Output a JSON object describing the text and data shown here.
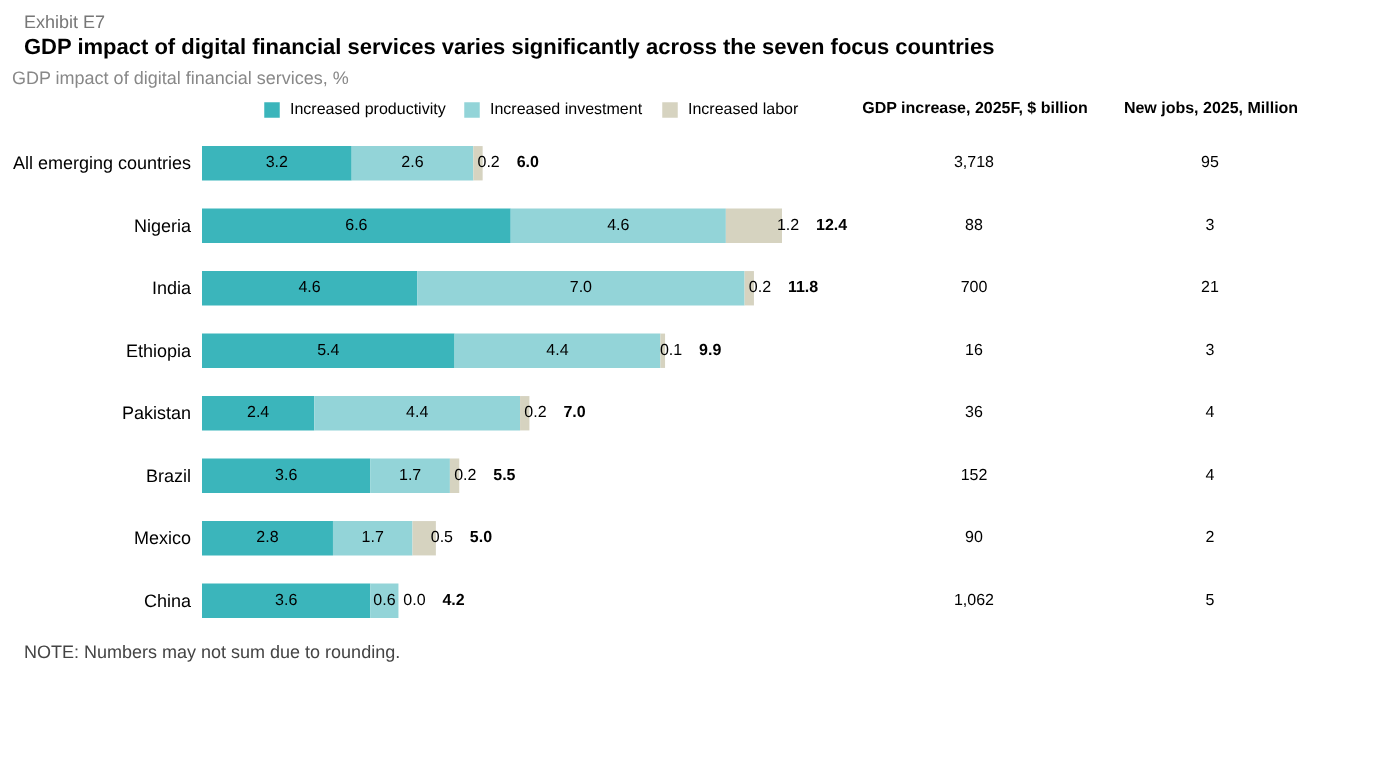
{
  "chart_data": {
    "type": "bar",
    "orientation": "horizontal",
    "stacked": true,
    "title": "GDP impact of digital financial services varies significantly across the seven focus countries",
    "subtitle": "GDP impact of digital financial services, %",
    "annotations": [
      "Exhibit E7",
      "GDP increase, 2025F, $ billion",
      "New jobs, 2025, Million",
      "3,718",
      "95",
      "88",
      "3",
      "700",
      "21",
      "16",
      "3",
      "36",
      "4",
      "152",
      "4",
      "90",
      "2",
      "1,062",
      "5",
      "NOTE: Numbers may not sum due to rounding."
    ],
    "categories": [
      "All emerging countries",
      "Nigeria",
      "India",
      "Ethiopia",
      "Pakistan",
      "Brazil",
      "Mexico",
      "China"
    ],
    "series": [
      {
        "name": "Increased productivity",
        "color": "#3bb5bb",
        "values": [
          3.2,
          6.6,
          4.6,
          5.4,
          2.4,
          3.6,
          2.8,
          3.6
        ]
      },
      {
        "name": "Increased investment",
        "color": "#93d4d8",
        "values": [
          2.6,
          4.6,
          7.0,
          4.4,
          4.4,
          1.7,
          1.7,
          0.6
        ],
        "value_labels": [
          "2.6",
          "4.6",
          "7.0",
          "4.4",
          "4.4",
          "1.7",
          "1.7",
          "0.6"
        ]
      },
      {
        "name": "Increased labor",
        "color": "#d6d3c0",
        "values": [
          0.2,
          1.2,
          0.2,
          0.1,
          0.2,
          0.2,
          0.5,
          0.0
        ],
        "value_labels": [
          "0.2",
          "1.2",
          "0.2",
          "0.1",
          "0.2",
          "0.2",
          "0.5",
          "0.0"
        ]
      }
    ],
    "data_labels": true,
    "totals": [
      "6.0",
      "12.4",
      "11.8",
      "9.9",
      "7.0",
      "5.5",
      "5.0",
      "4.2"
    ],
    "legend": "top right"
  }
}
